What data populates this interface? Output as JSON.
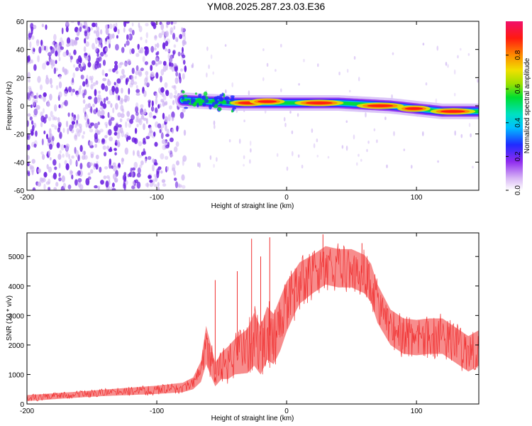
{
  "title": "YM08.2025.287.23.03.E36",
  "colors": {
    "snr_line": "#f03030",
    "scatter_purple": "#6a1fe0",
    "scatter_light": "#cdb2f2",
    "axis": "#000000"
  },
  "chart_data": [
    {
      "id": "spectrogram",
      "type": "heatmap",
      "title": "YM08.2025.287.23.03.E36",
      "xlabel": "Height of straight line (km)",
      "ylabel": "Frequency (Hz)",
      "xlim": [
        -200,
        148
      ],
      "ylim": [
        -60,
        60
      ],
      "xticks": [
        -200,
        -100,
        0,
        100
      ],
      "yticks": [
        -60,
        -40,
        -20,
        0,
        20,
        40,
        60
      ],
      "noise_region": {
        "x_range": [
          -200,
          -78
        ],
        "freq_range": [
          -60,
          60
        ]
      },
      "signal_track": {
        "x": [
          -80,
          -60,
          -40,
          -20,
          0,
          20,
          40,
          60,
          80,
          100,
          120,
          148
        ],
        "freq": [
          4,
          3,
          2,
          2,
          2,
          2,
          2,
          1,
          0,
          -2,
          -4,
          -4
        ]
      },
      "hotspots": [
        {
          "x": 25,
          "freq": 2,
          "amplitude": 0.95
        },
        {
          "x": 72,
          "freq": 0,
          "amplitude": 0.9
        },
        {
          "x": 128,
          "freq": -4,
          "amplitude": 0.85
        },
        {
          "x": -30,
          "freq": 2,
          "amplitude": 0.6
        },
        {
          "x": -15,
          "freq": 3,
          "amplitude": 0.6
        },
        {
          "x": 98,
          "freq": -2,
          "amplitude": 0.55
        }
      ],
      "colorbar": {
        "label": "Normalized spectral amplitude",
        "range": [
          0,
          1
        ],
        "ticks": [
          "0.0",
          "0.2",
          "0.4",
          "0.6",
          "0.8"
        ]
      }
    },
    {
      "id": "snr",
      "type": "line",
      "xlabel": "Height of straight line (km)",
      "ylabel": "SNR (10 * v/v)",
      "xlim": [
        -200,
        148
      ],
      "ylim": [
        0,
        5800
      ],
      "xticks": [
        -200,
        -100,
        0,
        100
      ],
      "yticks": [
        0,
        1000,
        2000,
        3000,
        4000,
        5000
      ],
      "series": [
        {
          "name": "SNR",
          "x": [
            -200,
            -180,
            -160,
            -140,
            -120,
            -100,
            -90,
            -80,
            -72,
            -66,
            -62,
            -55,
            -50,
            -45,
            -40,
            -30,
            -25,
            -20,
            -15,
            -10,
            -5,
            0,
            5,
            10,
            20,
            30,
            40,
            50,
            55,
            60,
            65,
            70,
            80,
            90,
            100,
            110,
            120,
            130,
            140,
            148
          ],
          "mean": [
            200,
            260,
            320,
            380,
            430,
            480,
            520,
            560,
            700,
            1100,
            2000,
            1000,
            1300,
            1400,
            1600,
            1800,
            2200,
            1800,
            2400,
            2200,
            2700,
            3300,
            3700,
            4100,
            4400,
            4700,
            4600,
            4600,
            4500,
            4400,
            4100,
            3400,
            2600,
            2300,
            2250,
            2300,
            2300,
            2000,
            1700,
            1900
          ],
          "band": [
            200,
            200,
            200,
            220,
            250,
            280,
            300,
            320,
            400,
            700,
            1300,
            800,
            900,
            1100,
            1200,
            1500,
            1800,
            1600,
            1800,
            1700,
            1800,
            1700,
            1500,
            1400,
            1300,
            1300,
            1300,
            1300,
            1300,
            1300,
            1300,
            1300,
            1200,
            1200,
            1200,
            1200,
            1200,
            1200,
            1200,
            1200
          ],
          "spikes": [
            {
              "x": -55,
              "value": 4200
            },
            {
              "x": -38,
              "value": 4500
            },
            {
              "x": -27,
              "value": 5600
            },
            {
              "x": -20,
              "value": 5000
            },
            {
              "x": -13,
              "value": 5650
            },
            {
              "x": 28,
              "value": 5750
            },
            {
              "x": 58,
              "value": 5450
            }
          ]
        }
      ]
    }
  ]
}
